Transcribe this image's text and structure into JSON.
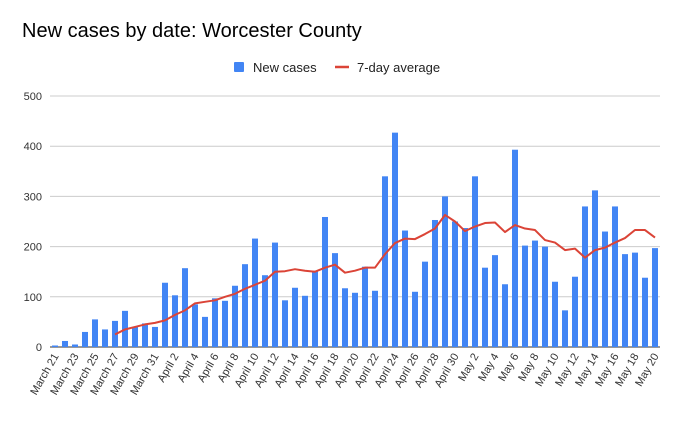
{
  "chart_data": {
    "type": "bar",
    "title": "New cases by date: Worcester County",
    "ylim": [
      0,
      500
    ],
    "yticks": [
      0,
      100,
      200,
      300,
      400,
      500
    ],
    "grid": true,
    "legend_position": "top-center",
    "categories": [
      "March 21",
      "March 22",
      "March 23",
      "March 24",
      "March 25",
      "March 26",
      "March 27",
      "March 28",
      "March 29",
      "March 30",
      "March 31",
      "April 1",
      "April 2",
      "April 3",
      "April 4",
      "April 5",
      "April 6",
      "April 7",
      "April 8",
      "April 9",
      "April 10",
      "April 11",
      "April 12",
      "April 13",
      "April 14",
      "April 15",
      "April 16",
      "April 17",
      "April 18",
      "April 19",
      "April 20",
      "April 21",
      "April 22",
      "April 23",
      "April 24",
      "April 25",
      "April 26",
      "April 27",
      "April 28",
      "April 29",
      "April 30",
      "May 1",
      "May 2",
      "May 3",
      "May 4",
      "May 5",
      "May 6",
      "May 7",
      "May 8",
      "May 9",
      "May 10",
      "May 11",
      "May 12",
      "May 13",
      "May 14",
      "May 15",
      "May 16",
      "May 17",
      "May 18",
      "May 19",
      "May 20"
    ],
    "tick_labels": [
      "March 21",
      "March 23",
      "March 25",
      "March 27",
      "March 29",
      "March 31",
      "April 2",
      "April 4",
      "April 6",
      "April 8",
      "April 10",
      "April 12",
      "April 14",
      "April 16",
      "April 18",
      "April 20",
      "April 22",
      "April 24",
      "April 26",
      "April 28",
      "April 30",
      "May 2",
      "May 4",
      "May 6",
      "May 8",
      "May 10",
      "May 12",
      "May 14",
      "May 16",
      "May 18",
      "May 20"
    ],
    "series": [
      {
        "name": "New cases",
        "type": "bar",
        "color": "#4285f4",
        "values": [
          3,
          12,
          5,
          30,
          55,
          35,
          52,
          72,
          40,
          47,
          40,
          128,
          103,
          157,
          85,
          60,
          97,
          92,
          122,
          165,
          216,
          143,
          208,
          93,
          118,
          102,
          152,
          259,
          187,
          117,
          108,
          160,
          112,
          340,
          427,
          232,
          110,
          170,
          253,
          300,
          250,
          237,
          340,
          158,
          183,
          125,
          393,
          202,
          212,
          200,
          130,
          73,
          140,
          280,
          312,
          230,
          280,
          185,
          188,
          138,
          197
        ]
      },
      {
        "name": "7-day average",
        "type": "line",
        "color": "#db4437",
        "values": [
          null,
          null,
          null,
          null,
          null,
          null,
          25,
          35,
          40,
          45,
          48,
          53,
          64,
          73,
          87,
          90,
          93,
          100,
          106,
          116,
          124,
          132,
          150,
          151,
          155,
          152,
          150,
          158,
          164,
          148,
          152,
          158,
          158,
          185,
          207,
          216,
          215,
          225,
          236,
          263,
          250,
          231,
          240,
          247,
          248,
          229,
          243,
          236,
          233,
          213,
          208,
          193,
          196,
          178,
          193,
          198,
          208,
          217,
          233,
          233,
          218
        ]
      }
    ]
  }
}
